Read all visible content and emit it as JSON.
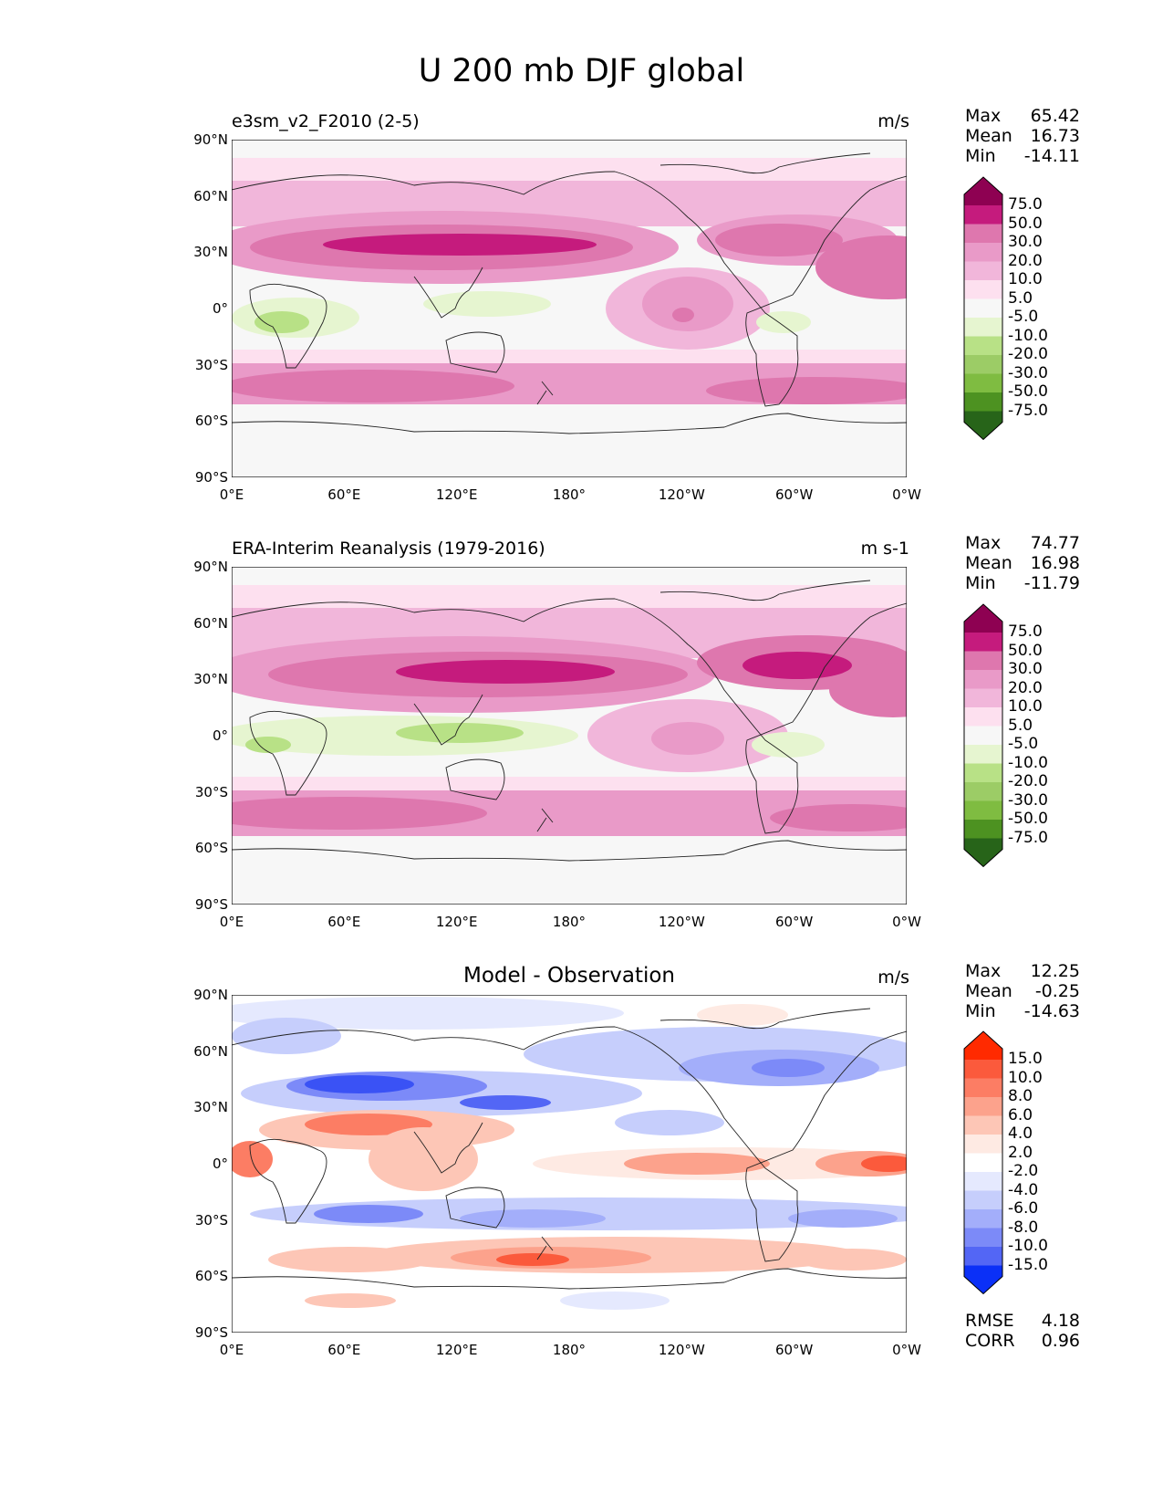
{
  "figure_title": "U 200 mb DJF global",
  "panels": [
    {
      "title_left": "e3sm_v2_F2010 (2-5)",
      "title_center": "",
      "units": "m/s",
      "stats": [
        {
          "label": "Max",
          "value": "65.42"
        },
        {
          "label": "Mean",
          "value": "16.73"
        },
        {
          "label": "Min",
          "value": "-14.11"
        }
      ],
      "colorbar_levels": [
        "75.0",
        "50.0",
        "30.0",
        "20.0",
        "10.0",
        "5.0",
        "-5.0",
        "-10.0",
        "-20.0",
        "-30.0",
        "-50.0",
        "-75.0"
      ],
      "colorbar_colors": [
        "#8e0152",
        "#c51b7d",
        "#de77ae",
        "#e99ac8",
        "#f1b6da",
        "#fde0ef",
        "#f7f7f7",
        "#e6f5d0",
        "#b8e186",
        "#9ccc66",
        "#7fbc41",
        "#4d9221",
        "#276419"
      ],
      "footer": []
    },
    {
      "title_left": "ERA-Interim Reanalysis (1979-2016)",
      "title_center": "",
      "units": "m s-1",
      "stats": [
        {
          "label": "Max",
          "value": "74.77"
        },
        {
          "label": "Mean",
          "value": "16.98"
        },
        {
          "label": "Min",
          "value": "-11.79"
        }
      ],
      "colorbar_levels": [
        "75.0",
        "50.0",
        "30.0",
        "20.0",
        "10.0",
        "5.0",
        "-5.0",
        "-10.0",
        "-20.0",
        "-30.0",
        "-50.0",
        "-75.0"
      ],
      "colorbar_colors": [
        "#8e0152",
        "#c51b7d",
        "#de77ae",
        "#e99ac8",
        "#f1b6da",
        "#fde0ef",
        "#f7f7f7",
        "#e6f5d0",
        "#b8e186",
        "#9ccc66",
        "#7fbc41",
        "#4d9221",
        "#276419"
      ],
      "footer": []
    },
    {
      "title_left": "",
      "title_center": "Model - Observation",
      "units": "m/s",
      "stats": [
        {
          "label": "Max",
          "value": "12.25"
        },
        {
          "label": "Mean",
          "value": "-0.25"
        },
        {
          "label": "Min",
          "value": "-14.63"
        }
      ],
      "colorbar_levels": [
        "15.0",
        "10.0",
        "8.0",
        "6.0",
        "4.0",
        "2.0",
        "-2.0",
        "-4.0",
        "-6.0",
        "-8.0",
        "-10.0",
        "-15.0"
      ],
      "colorbar_colors": [
        "#ff2a00",
        "#fb5a3c",
        "#fc7d64",
        "#fca28c",
        "#fdc6b6",
        "#feeae3",
        "#ffffff",
        "#e5e9fe",
        "#c6cefc",
        "#a3aefa",
        "#7c8af8",
        "#5366f5",
        "#0b30f7"
      ],
      "footer": [
        {
          "label": "RMSE",
          "value": "4.18"
        },
        {
          "label": "CORR",
          "value": "0.96"
        }
      ]
    }
  ],
  "axes": {
    "y_ticks": [
      "90°N",
      "60°N",
      "30°N",
      "0°",
      "30°S",
      "60°S",
      "90°S"
    ],
    "x_ticks": [
      "0°E",
      "60°E",
      "120°E",
      "180°",
      "120°W",
      "60°W",
      "0°W"
    ]
  },
  "chart_data": [
    {
      "type": "heatmap",
      "title": "e3sm_v2_F2010 (2-5)",
      "variable": "U 200 mb DJF",
      "units": "m/s",
      "xlim": [
        0,
        360
      ],
      "ylim": [
        -90,
        90
      ],
      "max": 65.42,
      "mean": 16.73,
      "min": -14.11,
      "levels": [
        -75,
        -50,
        -30,
        -20,
        -10,
        -5,
        5,
        10,
        20,
        30,
        50,
        75
      ]
    },
    {
      "type": "heatmap",
      "title": "ERA-Interim Reanalysis (1979-2016)",
      "variable": "U 200 mb DJF",
      "units": "m s-1",
      "xlim": [
        0,
        360
      ],
      "ylim": [
        -90,
        90
      ],
      "max": 74.77,
      "mean": 16.98,
      "min": -11.79,
      "levels": [
        -75,
        -50,
        -30,
        -20,
        -10,
        -5,
        5,
        10,
        20,
        30,
        50,
        75
      ]
    },
    {
      "type": "heatmap",
      "title": "Model - Observation",
      "variable": "U 200 mb DJF",
      "units": "m/s",
      "xlim": [
        0,
        360
      ],
      "ylim": [
        -90,
        90
      ],
      "max": 12.25,
      "mean": -0.25,
      "min": -14.63,
      "rmse": 4.18,
      "corr": 0.96,
      "levels": [
        -15,
        -10,
        -8,
        -6,
        -4,
        -2,
        2,
        4,
        6,
        8,
        10,
        15
      ]
    }
  ]
}
